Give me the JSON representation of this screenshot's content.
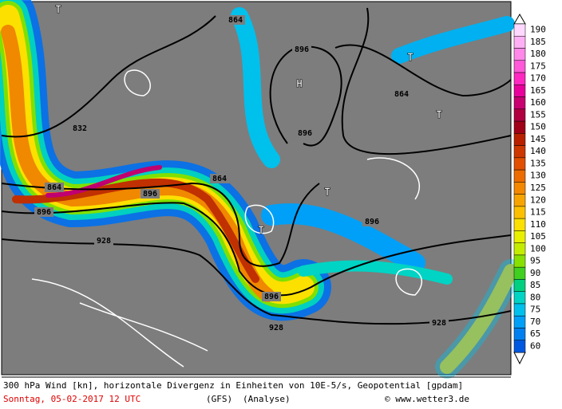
{
  "map": {
    "contour_labels": [
      "864",
      "896",
      "896",
      "864",
      "928",
      "832",
      "896",
      "896",
      "864",
      "896",
      "896",
      "928",
      "928",
      "864"
    ],
    "pressure_labels": [
      "T",
      "T",
      "T",
      "T",
      "T",
      "H"
    ],
    "legend": {
      "levels": [
        {
          "value": 190,
          "color": "#ffd8ff"
        },
        {
          "value": 185,
          "color": "#ffb0f4"
        },
        {
          "value": 180,
          "color": "#ff88e8"
        },
        {
          "value": 175,
          "color": "#ff58d8"
        },
        {
          "value": 170,
          "color": "#ff28c0"
        },
        {
          "value": 165,
          "color": "#e8009c"
        },
        {
          "value": 160,
          "color": "#c80070"
        },
        {
          "value": 155,
          "color": "#b00040"
        },
        {
          "value": 150,
          "color": "#a00018"
        },
        {
          "value": 145,
          "color": "#b82000"
        },
        {
          "value": 140,
          "color": "#cc3800"
        },
        {
          "value": 135,
          "color": "#e05000"
        },
        {
          "value": 130,
          "color": "#ec6c00"
        },
        {
          "value": 125,
          "color": "#f48800"
        },
        {
          "value": 120,
          "color": "#f8a400"
        },
        {
          "value": 115,
          "color": "#fcc000"
        },
        {
          "value": 110,
          "color": "#fce000"
        },
        {
          "value": 105,
          "color": "#e8f000"
        },
        {
          "value": 100,
          "color": "#c4ec00"
        },
        {
          "value": 95,
          "color": "#88e000"
        },
        {
          "value": 90,
          "color": "#40d020"
        },
        {
          "value": 85,
          "color": "#00d080"
        },
        {
          "value": 80,
          "color": "#00d4c4"
        },
        {
          "value": 75,
          "color": "#00c0ec"
        },
        {
          "value": 70,
          "color": "#00a0f8"
        },
        {
          "value": 65,
          "color": "#0080f0"
        },
        {
          "value": 60,
          "color": "#0058e0"
        }
      ]
    },
    "footer": {
      "description": "300 hPa Wind [kn], horizontale Divergenz in Einheiten von 10E-5/s, Geopotential [gpdam]",
      "date": "Sonntag, 05-02-2017  12 UTC",
      "model": "(GFS)",
      "run": "(Analyse)",
      "credit": "© www.wetter3.de"
    }
  }
}
